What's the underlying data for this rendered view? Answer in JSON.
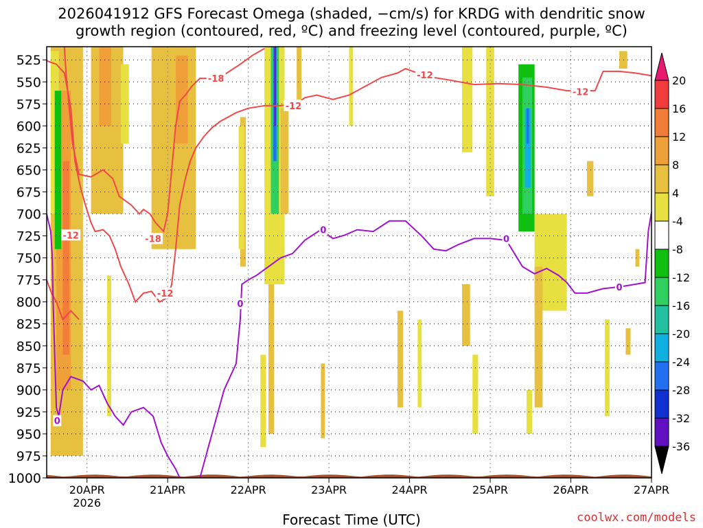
{
  "title_line1": "2026041912 GFS Forecast Omega (shaded, −cm/s) for KRDG with dendritic snow",
  "title_line2": "growth region (contoured, red, ºC) and freezing level (contoured, purple, ºC)",
  "x_axis_title": "Forecast Time (UTC)",
  "credit": "coolwx.com/models",
  "chart_data": {
    "type": "heatmap",
    "title": "2026041912 GFS Forecast Omega (shaded, −cm/s) for KRDG with dendritic snow growth region (contoured, red, ºC) and freezing level (contoured, purple, ºC)",
    "xlabel": "Forecast Time (UTC)",
    "ylabel": "",
    "x_ticks": [
      "20APR",
      "21APR",
      "22APR",
      "23APR",
      "24APR",
      "25APR",
      "26APR",
      "27APR"
    ],
    "x_sub_label": "2026",
    "y_ticks": [
      525,
      550,
      575,
      600,
      625,
      650,
      675,
      700,
      725,
      750,
      775,
      800,
      825,
      850,
      875,
      900,
      925,
      950,
      975,
      1000
    ],
    "y_unit": "hPa",
    "ylim": [
      1000,
      510
    ],
    "x_range_days": [
      19.5,
      27.0
    ],
    "grid": true,
    "colorbar": {
      "labels": [
        20,
        16,
        12,
        8,
        4,
        -4,
        -8,
        -12,
        -16,
        -20,
        -24,
        -28,
        -32,
        -36
      ],
      "colors": [
        "#e8186e",
        "#f03c3c",
        "#f27d38",
        "#f0a038",
        "#e8c040",
        "#e8e040",
        "#ffffff",
        "#10c010",
        "#30d060",
        "#20c0a0",
        "#10b0e0",
        "#2070f0",
        "#1030d0",
        "#6010c0",
        "#a010d0",
        "#a8a8a8",
        "#000000"
      ]
    },
    "shaded_regions": [
      {
        "value": 4,
        "t0": 19.55,
        "t1": 19.95,
        "p_top": 510,
        "p_bot": 975
      },
      {
        "value": 8,
        "t0": 19.62,
        "t1": 19.8,
        "p_top": 560,
        "p_bot": 900
      },
      {
        "value": 12,
        "t0": 19.7,
        "t1": 19.78,
        "p_top": 640,
        "p_bot": 860
      },
      {
        "value": 4,
        "t0": 20.05,
        "t1": 20.45,
        "p_top": 510,
        "p_bot": 700
      },
      {
        "value": 8,
        "t0": 20.15,
        "t1": 20.3,
        "p_top": 510,
        "p_bot": 600
      },
      {
        "value": -4,
        "t0": 19.55,
        "t1": 19.65,
        "p_top": 515,
        "p_bot": 700
      },
      {
        "value": -12,
        "t0": 19.6,
        "t1": 19.68,
        "p_top": 560,
        "p_bot": 740
      },
      {
        "value": -4,
        "t0": 20.42,
        "t1": 20.52,
        "p_top": 530,
        "p_bot": 620
      },
      {
        "value": 4,
        "t0": 20.8,
        "t1": 21.35,
        "p_top": 510,
        "p_bot": 740
      },
      {
        "value": 8,
        "t0": 21.1,
        "t1": 21.25,
        "p_top": 520,
        "p_bot": 620
      },
      {
        "value": 4,
        "t0": 21.9,
        "t1": 21.97,
        "p_top": 590,
        "p_bot": 760
      },
      {
        "value": -4,
        "t0": 21.88,
        "t1": 21.95,
        "p_top": 600,
        "p_bot": 740
      },
      {
        "value": -4,
        "t0": 22.2,
        "t1": 22.45,
        "p_top": 510,
        "p_bot": 780
      },
      {
        "value": -16,
        "t0": 22.28,
        "t1": 22.38,
        "p_top": 510,
        "p_bot": 700
      },
      {
        "value": -28,
        "t0": 22.31,
        "t1": 22.35,
        "p_top": 510,
        "p_bot": 640
      },
      {
        "value": -36,
        "t0": 22.325,
        "t1": 22.34,
        "p_top": 510,
        "p_bot": 600
      },
      {
        "value": 4,
        "t0": 22.4,
        "t1": 22.5,
        "p_top": 580,
        "p_bot": 700
      },
      {
        "value": 4,
        "t0": 22.6,
        "t1": 22.66,
        "p_top": 510,
        "p_bot": 570
      },
      {
        "value": -4,
        "t0": 23.25,
        "t1": 23.3,
        "p_top": 510,
        "p_bot": 600
      },
      {
        "value": -4,
        "t0": 24.65,
        "t1": 24.78,
        "p_top": 510,
        "p_bot": 630
      },
      {
        "value": -4,
        "t0": 24.95,
        "t1": 25.05,
        "p_top": 510,
        "p_bot": 680
      },
      {
        "value": -8,
        "t0": 25.2,
        "t1": 25.65,
        "p_top": 510,
        "p_bot": 760
      },
      {
        "value": -12,
        "t0": 25.35,
        "t1": 25.55,
        "p_top": 530,
        "p_bot": 720
      },
      {
        "value": -16,
        "t0": 25.4,
        "t1": 25.52,
        "p_top": 545,
        "p_bot": 700
      },
      {
        "value": -24,
        "t0": 25.43,
        "t1": 25.5,
        "p_top": 580,
        "p_bot": 670
      },
      {
        "value": -28,
        "t0": 25.45,
        "t1": 25.48,
        "p_top": 580,
        "p_bot": 620
      },
      {
        "value": -4,
        "t0": 25.55,
        "t1": 25.95,
        "p_top": 700,
        "p_bot": 810
      },
      {
        "value": 4,
        "t0": 25.55,
        "t1": 25.65,
        "p_top": 760,
        "p_bot": 920
      },
      {
        "value": -4,
        "t0": 25.45,
        "t1": 25.52,
        "p_top": 900,
        "p_bot": 950
      },
      {
        "value": 4,
        "t0": 24.65,
        "t1": 24.75,
        "p_top": 780,
        "p_bot": 850
      },
      {
        "value": -4,
        "t0": 24.78,
        "t1": 24.85,
        "p_top": 860,
        "p_bot": 950
      },
      {
        "value": -4,
        "t0": 24.1,
        "t1": 24.15,
        "p_top": 820,
        "p_bot": 920
      },
      {
        "value": 4,
        "t0": 23.85,
        "t1": 23.92,
        "p_top": 810,
        "p_bot": 920
      },
      {
        "value": -4,
        "t0": 22.15,
        "t1": 22.22,
        "p_top": 860,
        "p_bot": 965
      },
      {
        "value": 4,
        "t0": 22.25,
        "t1": 22.32,
        "p_top": 780,
        "p_bot": 950
      },
      {
        "value": 4,
        "t0": 22.9,
        "t1": 22.95,
        "p_top": 870,
        "p_bot": 955
      },
      {
        "value": 4,
        "t0": 26.2,
        "t1": 26.28,
        "p_top": 640,
        "p_bot": 680
      },
      {
        "value": 4,
        "t0": 26.6,
        "t1": 26.7,
        "p_top": 515,
        "p_bot": 535
      },
      {
        "value": 4,
        "t0": 26.68,
        "t1": 26.74,
        "p_top": 830,
        "p_bot": 860
      },
      {
        "value": -4,
        "t0": 26.42,
        "t1": 26.48,
        "p_top": 820,
        "p_bot": 930
      },
      {
        "value": 4,
        "t0": 26.8,
        "t1": 26.85,
        "p_top": 740,
        "p_bot": 760
      },
      {
        "value": -4,
        "t0": 20.25,
        "t1": 20.3,
        "p_top": 770,
        "p_bot": 930
      }
    ],
    "series": [
      {
        "name": "-12",
        "color": "#f04848",
        "labels": [
          {
            "text": "-12",
            "t": 19.8,
            "p": 724
          },
          {
            "text": "-12",
            "t": 20.97,
            "p": 790
          },
          {
            "text": "-12",
            "t": 22.56,
            "p": 577
          },
          {
            "text": "-12",
            "t": 24.19,
            "p": 542
          },
          {
            "text": "-12",
            "t": 26.12,
            "p": 561
          }
        ],
        "lines": [
          [
            [
              19.5,
              526
            ],
            [
              19.62,
              530
            ],
            [
              19.72,
              540
            ],
            [
              19.8,
              580
            ],
            [
              19.85,
              640
            ],
            [
              19.92,
              670
            ],
            [
              19.98,
              690
            ],
            [
              20.05,
              710
            ],
            [
              20.1,
              720
            ],
            [
              20.2,
              718
            ],
            [
              20.28,
              725
            ],
            [
              20.35,
              740
            ],
            [
              20.42,
              760
            ],
            [
              20.52,
              780
            ],
            [
              20.6,
              800
            ],
            [
              20.7,
              790
            ],
            [
              20.8,
              788
            ],
            [
              20.9,
              800
            ],
            [
              21.0,
              795
            ],
            [
              21.05,
              780
            ],
            [
              21.1,
              740
            ],
            [
              21.15,
              690
            ],
            [
              21.22,
              660
            ],
            [
              21.28,
              640
            ],
            [
              21.35,
              625
            ],
            [
              21.45,
              612
            ],
            [
              21.55,
              602
            ],
            [
              21.65,
              595
            ],
            [
              21.75,
              590
            ],
            [
              21.85,
              585
            ],
            [
              22.0,
              580
            ],
            [
              22.2,
              577
            ],
            [
              22.4,
              577
            ],
            [
              22.6,
              575
            ],
            [
              22.7,
              568
            ],
            [
              22.85,
              565
            ],
            [
              23.05,
              570
            ],
            [
              23.25,
              565
            ],
            [
              23.45,
              555
            ],
            [
              23.65,
              545
            ],
            [
              23.85,
              540
            ],
            [
              23.95,
              535
            ],
            [
              24.1,
              540
            ],
            [
              24.3,
              545
            ],
            [
              24.5,
              548
            ],
            [
              24.8,
              553
            ],
            [
              25.1,
              552
            ],
            [
              25.4,
              553
            ],
            [
              25.7,
              556
            ],
            [
              25.95,
              560
            ],
            [
              26.15,
              560
            ],
            [
              26.3,
              560
            ],
            [
              26.4,
              538
            ],
            [
              26.6,
              538
            ],
            [
              26.8,
              540
            ],
            [
              27.0,
              543
            ]
          ],
          [
            [
              19.5,
              775
            ],
            [
              19.56,
              790
            ],
            [
              19.62,
              800
            ],
            [
              19.7,
              820
            ],
            [
              19.8,
              810
            ],
            [
              19.9,
              820
            ]
          ]
        ]
      },
      {
        "name": "-18",
        "color": "#f04848",
        "labels": [
          {
            "text": "-18",
            "t": 20.82,
            "p": 728
          },
          {
            "text": "-18",
            "t": 21.6,
            "p": 546
          }
        ],
        "lines": [
          [
            [
              19.72,
              510
            ],
            [
              19.74,
              540
            ],
            [
              19.78,
              580
            ],
            [
              19.82,
              620
            ],
            [
              19.9,
              655
            ],
            [
              20.05,
              658
            ],
            [
              20.2,
              650
            ],
            [
              20.32,
              660
            ],
            [
              20.4,
              680
            ],
            [
              20.55,
              690
            ],
            [
              20.65,
              700
            ],
            [
              20.7,
              695
            ],
            [
              20.78,
              700
            ],
            [
              20.85,
              710
            ],
            [
              20.95,
              720
            ],
            [
              21.0,
              700
            ],
            [
              21.05,
              650
            ],
            [
              21.1,
              600
            ],
            [
              21.15,
              572
            ],
            [
              21.22,
              565
            ],
            [
              21.3,
              555
            ],
            [
              21.4,
              546
            ],
            [
              21.55,
              546
            ],
            [
              21.7,
              542
            ],
            [
              21.9,
              530
            ],
            [
              22.05,
              520
            ],
            [
              22.2,
              512
            ]
          ]
        ]
      },
      {
        "name": "0",
        "color": "#a010d0",
        "labels": [
          {
            "text": "0",
            "t": 19.63,
            "p": 935
          },
          {
            "text": "0",
            "t": 21.9,
            "p": 802
          },
          {
            "text": "0",
            "t": 22.93,
            "p": 718
          },
          {
            "text": "0",
            "t": 25.2,
            "p": 728
          },
          {
            "text": "0",
            "t": 26.6,
            "p": 783
          }
        ],
        "lines": [
          [
            [
              19.5,
              700
            ],
            [
              19.55,
              720
            ],
            [
              19.57,
              750
            ],
            [
              19.58,
              800
            ],
            [
              19.6,
              860
            ],
            [
              19.62,
              920
            ],
            [
              19.65,
              930
            ],
            [
              19.7,
              900
            ],
            [
              19.8,
              885
            ],
            [
              19.95,
              890
            ],
            [
              20.05,
              900
            ],
            [
              20.15,
              895
            ],
            [
              20.25,
              915
            ],
            [
              20.35,
              930
            ],
            [
              20.45,
              940
            ],
            [
              20.55,
              925
            ],
            [
              20.7,
              920
            ],
            [
              20.82,
              930
            ],
            [
              20.92,
              960
            ],
            [
              21.0,
              975
            ],
            [
              21.1,
              990
            ],
            [
              21.15,
              1000
            ]
          ],
          [
            [
              21.4,
              1000
            ],
            [
              21.55,
              950
            ],
            [
              21.7,
              900
            ],
            [
              21.85,
              870
            ],
            [
              21.9,
              820
            ],
            [
              21.92,
              780
            ],
            [
              22.0,
              775
            ],
            [
              22.1,
              770
            ],
            [
              22.25,
              760
            ],
            [
              22.4,
              750
            ],
            [
              22.55,
              745
            ],
            [
              22.7,
              730
            ],
            [
              22.9,
              718
            ],
            [
              23.05,
              728
            ],
            [
              23.2,
              724
            ],
            [
              23.35,
              718
            ],
            [
              23.55,
              720
            ],
            [
              23.75,
              708
            ],
            [
              23.95,
              708
            ],
            [
              24.15,
              725
            ],
            [
              24.3,
              740
            ],
            [
              24.45,
              742
            ],
            [
              24.6,
              735
            ],
            [
              24.8,
              728
            ],
            [
              25.0,
              728
            ],
            [
              25.2,
              730
            ],
            [
              25.4,
              760
            ],
            [
              25.55,
              768
            ],
            [
              25.7,
              762
            ],
            [
              25.85,
              770
            ],
            [
              25.95,
              778
            ],
            [
              26.05,
              790
            ],
            [
              26.2,
              790
            ],
            [
              26.4,
              785
            ],
            [
              26.6,
              783
            ],
            [
              26.8,
              780
            ],
            [
              26.92,
              778
            ],
            [
              26.96,
              720
            ],
            [
              27.0,
              698
            ]
          ]
        ]
      }
    ],
    "terrain_color": "#a0522d"
  }
}
